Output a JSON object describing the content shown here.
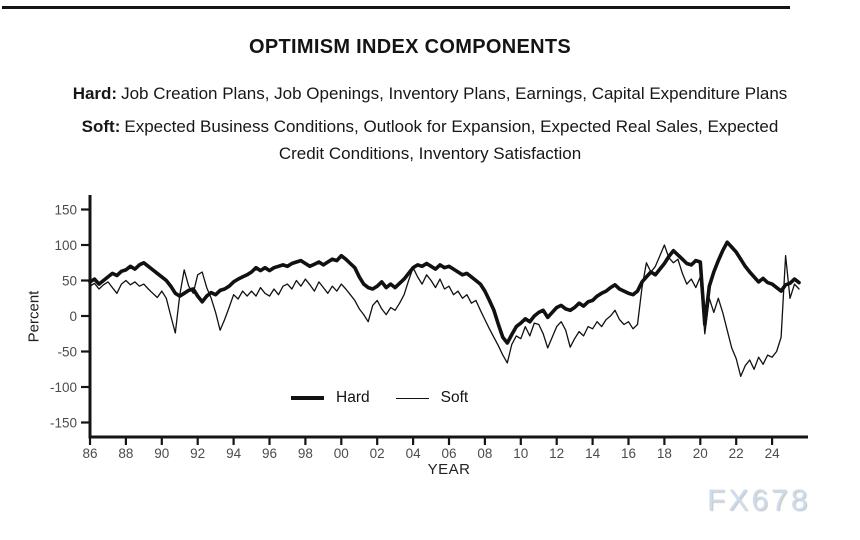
{
  "header": {
    "title": "OPTIMISM INDEX COMPONENTS"
  },
  "subtitles": [
    {
      "prefix": "Hard:",
      "text": "Job Creation Plans, Job Openings, Inventory Plans, Earnings, Capital Expenditure Plans"
    },
    {
      "prefix": "Soft:",
      "text": "Expected Business Conditions, Outlook for Expansion, Expected Real Sales, Expected Credit Conditions, Inventory Satisfaction"
    }
  ],
  "watermark": "FX678",
  "colors": {
    "axis": "#141414",
    "tick_label": "#4c4c4c",
    "text": "#222222",
    "line": "#111111",
    "watermark": "#cdddf0"
  },
  "chart_data": {
    "type": "line",
    "title": "OPTIMISM INDEX COMPONENTS",
    "xlabel": "YEAR",
    "ylabel": "Percent",
    "ylim": [
      -150,
      150
    ],
    "xlim": [
      1986,
      2026
    ],
    "grid": false,
    "legend_position": "inside-bottom-center",
    "y_ticks": [
      150,
      100,
      50,
      0,
      -50,
      -100,
      -150
    ],
    "x_ticks": [
      {
        "label": "86",
        "year": 1986
      },
      {
        "label": "88",
        "year": 1988
      },
      {
        "label": "90",
        "year": 1990
      },
      {
        "label": "92",
        "year": 1992
      },
      {
        "label": "94",
        "year": 1994
      },
      {
        "label": "96",
        "year": 1996
      },
      {
        "label": "98",
        "year": 1998
      },
      {
        "label": "00",
        "year": 2000
      },
      {
        "label": "02",
        "year": 2002
      },
      {
        "label": "04",
        "year": 2004
      },
      {
        "label": "06",
        "year": 2006
      },
      {
        "label": "08",
        "year": 2008
      },
      {
        "label": "10",
        "year": 2010
      },
      {
        "label": "12",
        "year": 2012
      },
      {
        "label": "14",
        "year": 2014
      },
      {
        "label": "16",
        "year": 2016
      },
      {
        "label": "18",
        "year": 2018
      },
      {
        "label": "20",
        "year": 2020
      },
      {
        "label": "22",
        "year": 2022
      },
      {
        "label": "24",
        "year": 2024
      }
    ],
    "x_start": 1986.0,
    "x_step": 0.25,
    "series": [
      {
        "name": "Hard",
        "weight": "thick",
        "color": "#111111",
        "values": [
          48,
          52,
          45,
          50,
          55,
          60,
          57,
          63,
          65,
          70,
          66,
          72,
          75,
          70,
          65,
          60,
          55,
          50,
          42,
          32,
          28,
          32,
          36,
          38,
          28,
          20,
          28,
          33,
          30,
          36,
          38,
          42,
          48,
          52,
          55,
          58,
          62,
          68,
          64,
          68,
          64,
          68,
          70,
          72,
          70,
          74,
          76,
          78,
          74,
          70,
          73,
          76,
          72,
          76,
          80,
          78,
          85,
          80,
          74,
          68,
          55,
          45,
          40,
          38,
          42,
          48,
          40,
          45,
          40,
          46,
          52,
          60,
          68,
          72,
          70,
          74,
          70,
          66,
          72,
          68,
          70,
          66,
          62,
          58,
          60,
          55,
          50,
          45,
          35,
          22,
          8,
          -12,
          -30,
          -38,
          -26,
          -15,
          -10,
          -4,
          -8,
          0,
          5,
          8,
          -2,
          5,
          12,
          15,
          10,
          8,
          12,
          18,
          14,
          20,
          22,
          28,
          32,
          35,
          40,
          44,
          38,
          35,
          32,
          30,
          35,
          48,
          55,
          62,
          58,
          66,
          74,
          84,
          92,
          86,
          80,
          74,
          72,
          78,
          76,
          -12,
          42,
          62,
          78,
          92,
          104,
          97,
          90,
          80,
          70,
          62,
          55,
          48,
          53,
          47,
          45,
          40,
          35,
          44,
          46,
          52,
          47
        ]
      },
      {
        "name": "Soft",
        "weight": "thin",
        "color": "#111111",
        "values": [
          42,
          46,
          38,
          44,
          48,
          40,
          32,
          45,
          50,
          44,
          48,
          42,
          45,
          38,
          32,
          26,
          35,
          25,
          0,
          -24,
          30,
          65,
          42,
          32,
          58,
          62,
          40,
          25,
          5,
          -20,
          -5,
          12,
          30,
          24,
          35,
          28,
          35,
          28,
          40,
          32,
          28,
          38,
          30,
          42,
          45,
          38,
          50,
          42,
          52,
          44,
          35,
          48,
          40,
          32,
          42,
          35,
          45,
          38,
          30,
          22,
          10,
          2,
          -8,
          15,
          22,
          10,
          2,
          12,
          8,
          18,
          30,
          50,
          68,
          55,
          45,
          58,
          50,
          40,
          52,
          38,
          42,
          30,
          35,
          25,
          30,
          18,
          22,
          8,
          -5,
          -18,
          -30,
          -42,
          -55,
          -66,
          -40,
          -28,
          -32,
          -15,
          -28,
          -10,
          -12,
          -25,
          -45,
          -30,
          -15,
          -8,
          -20,
          -44,
          -32,
          -22,
          -28,
          -15,
          -18,
          -8,
          -15,
          -5,
          0,
          8,
          -5,
          -12,
          -8,
          -18,
          -12,
          40,
          75,
          62,
          70,
          85,
          100,
          82,
          75,
          80,
          60,
          45,
          52,
          40,
          55,
          -25,
          25,
          5,
          25,
          5,
          -20,
          -45,
          -60,
          -85,
          -70,
          -62,
          -75,
          -58,
          -68,
          -55,
          -58,
          -50,
          -30,
          85,
          25,
          45,
          38
        ]
      }
    ]
  }
}
